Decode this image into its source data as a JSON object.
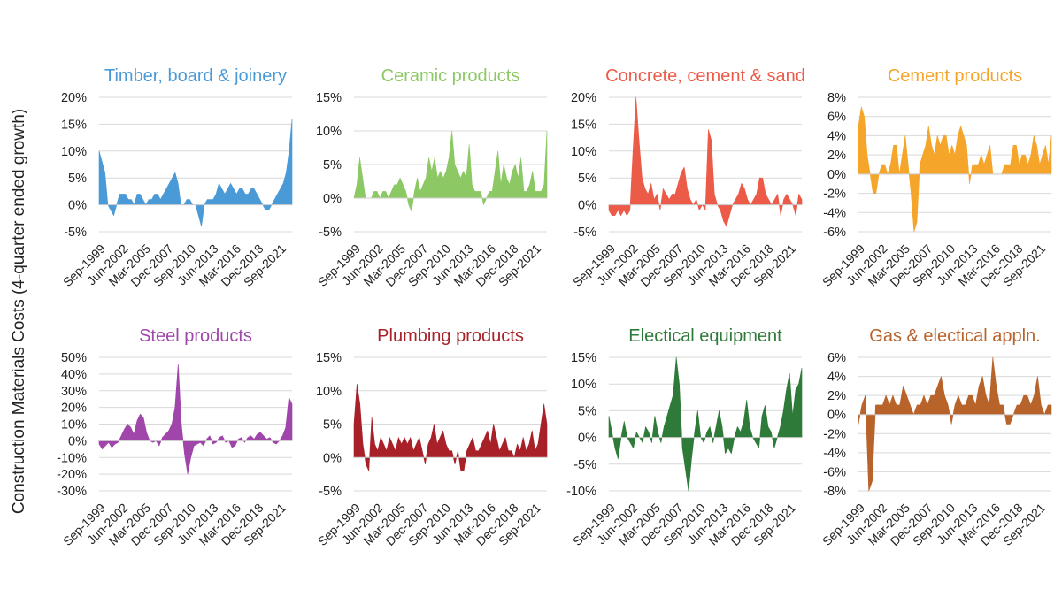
{
  "figure": {
    "ylabel": "Construction Materials Costs (4-quarter ended growth)"
  },
  "chart_data": [
    {
      "type": "area",
      "title": "Timber, board & joinery",
      "color": "#4a9ad8",
      "ylim": [
        -5,
        20
      ],
      "yticks": [
        -5,
        0,
        5,
        10,
        15,
        20
      ],
      "ytick_labels": [
        "-5%",
        "0%",
        "5%",
        "10%",
        "15%",
        "20%"
      ],
      "x_start": "Sep-1999",
      "x_end": "Dec-2021",
      "xtick_labels": [
        "Sep-1999",
        "Jun-2002",
        "Mar-2005",
        "Dec-2007",
        "Sep-2010",
        "Jun-2013",
        "Mar-2016",
        "Dec-2018",
        "Sep-2021"
      ],
      "grid": true,
      "values": [
        10,
        8,
        6,
        0,
        -1,
        -2,
        0,
        2,
        2,
        2,
        1,
        1,
        0,
        2,
        2,
        1,
        0,
        1,
        1,
        2,
        2,
        1,
        2,
        3,
        4,
        5,
        6,
        4,
        0,
        0,
        1,
        1,
        0,
        0,
        -2,
        -4,
        0,
        1,
        1,
        1,
        2,
        4,
        3,
        2,
        3,
        4,
        3,
        2,
        3,
        3,
        2,
        2,
        3,
        3,
        2,
        1,
        0,
        -1,
        -1,
        0,
        1,
        2,
        3,
        4,
        6,
        10,
        16
      ]
    },
    {
      "type": "area",
      "title": "Ceramic products",
      "color": "#8cc864",
      "ylim": [
        -5,
        15
      ],
      "yticks": [
        -5,
        0,
        5,
        10,
        15
      ],
      "ytick_labels": [
        "-5%",
        "0%",
        "5%",
        "10%",
        "15%"
      ],
      "x_start": "Sep-1999",
      "x_end": "Dec-2021",
      "xtick_labels": [
        "Sep-1999",
        "Jun-2002",
        "Mar-2005",
        "Dec-2007",
        "Sep-2010",
        "Jun-2013",
        "Mar-2016",
        "Dec-2018",
        "Sep-2021"
      ],
      "grid": true,
      "values": [
        0,
        2,
        6,
        3,
        0,
        0,
        0,
        1,
        1,
        0,
        1,
        1,
        0,
        1,
        2,
        2,
        3,
        2,
        1,
        -1,
        -2,
        1,
        3,
        1,
        2,
        3,
        6,
        4,
        6,
        3,
        4,
        3,
        4,
        6,
        10,
        5,
        4,
        3,
        4,
        3,
        8,
        2,
        1,
        1,
        1,
        -1,
        0,
        1,
        1,
        4,
        7,
        2,
        5,
        3,
        2,
        4,
        5,
        3,
        6,
        1,
        1,
        2,
        4,
        1,
        1,
        1,
        2,
        10
      ]
    },
    {
      "type": "area",
      "title": "Concrete, cement & sand",
      "color": "#ec5a48",
      "ylim": [
        -5,
        20
      ],
      "yticks": [
        -5,
        0,
        5,
        10,
        15,
        20
      ],
      "ytick_labels": [
        "-5%",
        "0%",
        "5%",
        "10%",
        "15%",
        "20%"
      ],
      "x_start": "Sep-1999",
      "x_end": "Dec-2021",
      "xtick_labels": [
        "Sep-1999",
        "Jun-2002",
        "Mar-2005",
        "Dec-2007",
        "Sep-2010",
        "Jun-2013",
        "Mar-2016",
        "Dec-2018",
        "Sep-2021"
      ],
      "grid": true,
      "values": [
        -1,
        -2,
        -2,
        -1,
        -2,
        -1,
        -2,
        -1,
        10,
        20,
        12,
        5,
        3,
        2,
        4,
        1,
        2,
        -1,
        3,
        2,
        1,
        2,
        2,
        4,
        6,
        7,
        3,
        1,
        0,
        1,
        -1,
        0,
        -1,
        14,
        12,
        2,
        0,
        -1,
        -3,
        -4,
        -2,
        0,
        1,
        2,
        4,
        3,
        1,
        0,
        1,
        2,
        5,
        5,
        2,
        1,
        0,
        1,
        2,
        -2,
        1,
        2,
        1,
        0,
        -2,
        2,
        1
      ]
    },
    {
      "type": "area",
      "title": "Cement products",
      "color": "#f5a52a",
      "ylim": [
        -6,
        8
      ],
      "yticks": [
        -6,
        -4,
        -2,
        0,
        2,
        4,
        6,
        8
      ],
      "ytick_labels": [
        "-6%",
        "-4%",
        "-2%",
        "0%",
        "2%",
        "4%",
        "6%",
        "8%"
      ],
      "x_start": "Sep-1999",
      "x_end": "Dec-2021",
      "xtick_labels": [
        "Sep-1999",
        "Jun-2002",
        "Mar-2005",
        "Dec-2007",
        "Sep-2010",
        "Jun-2013",
        "Mar-2016",
        "Dec-2018",
        "Sep-2021"
      ],
      "grid": true,
      "values": [
        5,
        7,
        6,
        2,
        0,
        -2,
        -2,
        0,
        1,
        1,
        0,
        1,
        3,
        3,
        0,
        2,
        4,
        1,
        -2,
        -6,
        -5,
        1,
        2,
        3,
        5,
        3,
        2,
        4,
        3,
        4,
        4,
        2,
        3,
        2,
        4,
        5,
        4,
        3,
        -1,
        1,
        1,
        1,
        2,
        1,
        2,
        3,
        0,
        0,
        0,
        0,
        1,
        1,
        1,
        3,
        3,
        1,
        2,
        2,
        1,
        2,
        4,
        3,
        1,
        2,
        3,
        1,
        4
      ]
    },
    {
      "type": "area",
      "title": "Steel products",
      "color": "#a046aa",
      "ylim": [
        -30,
        50
      ],
      "yticks": [
        -30,
        -20,
        -10,
        0,
        10,
        20,
        30,
        40,
        50
      ],
      "ytick_labels": [
        "-30%",
        "-20%",
        "-10%",
        "0%",
        "10%",
        "20%",
        "30%",
        "40%",
        "50%"
      ],
      "x_start": "Sep-1999",
      "x_end": "Dec-2021",
      "xtick_labels": [
        "Sep-1999",
        "Jun-2002",
        "Mar-2005",
        "Dec-2007",
        "Sep-2010",
        "Jun-2013",
        "Mar-2016",
        "Dec-2018",
        "Sep-2021"
      ],
      "grid": true,
      "values": [
        -2,
        -5,
        -3,
        -1,
        -4,
        -2,
        -1,
        3,
        7,
        10,
        8,
        4,
        12,
        16,
        14,
        5,
        0,
        -1,
        0,
        -3,
        2,
        4,
        6,
        10,
        20,
        46,
        10,
        -8,
        -20,
        -10,
        -3,
        -2,
        -1,
        -3,
        1,
        3,
        -2,
        -1,
        2,
        3,
        -1,
        0,
        -4,
        -3,
        1,
        2,
        -1,
        2,
        3,
        1,
        4,
        5,
        3,
        1,
        2,
        -1,
        -2,
        0,
        3,
        8,
        26,
        22
      ]
    },
    {
      "type": "area",
      "title": "Plumbing products",
      "color": "#a82028",
      "ylim": [
        -5,
        15
      ],
      "yticks": [
        -5,
        0,
        5,
        10,
        15
      ],
      "ytick_labels": [
        "-5%",
        "0%",
        "5%",
        "10%",
        "15%"
      ],
      "x_start": "Sep-1999",
      "x_end": "Dec-2021",
      "xtick_labels": [
        "Sep-1999",
        "Jun-2002",
        "Mar-2005",
        "Dec-2007",
        "Sep-2010",
        "Jun-2013",
        "Mar-2016",
        "Dec-2018",
        "Sep-2021"
      ],
      "grid": true,
      "values": [
        5,
        11,
        8,
        2,
        -1,
        -2,
        6,
        2,
        1,
        3,
        2,
        1,
        3,
        2,
        1,
        3,
        2,
        3,
        2,
        3,
        1,
        2,
        3,
        1,
        -1,
        2,
        3,
        5,
        2,
        3,
        4,
        2,
        1,
        1,
        -1,
        1,
        -2,
        -2,
        1,
        2,
        3,
        1,
        1,
        2,
        3,
        4,
        2,
        5,
        3,
        1,
        2,
        3,
        1,
        1,
        0,
        2,
        1,
        3,
        1,
        2,
        4,
        1,
        2,
        5,
        8,
        5
      ]
    },
    {
      "type": "area",
      "title": "Electical equipment",
      "color": "#2e7a38",
      "ylim": [
        -10,
        15
      ],
      "yticks": [
        -10,
        -5,
        0,
        5,
        10,
        15
      ],
      "ytick_labels": [
        "-10%",
        "-5%",
        "0%",
        "5%",
        "10%",
        "15%"
      ],
      "x_start": "Sep-1999",
      "x_end": "Dec-2021",
      "xtick_labels": [
        "Sep-1999",
        "Jun-2002",
        "Mar-2005",
        "Dec-2007",
        "Sep-2010",
        "Jun-2013",
        "Mar-2016",
        "Dec-2018",
        "Sep-2021"
      ],
      "grid": true,
      "values": [
        4,
        1,
        -2,
        -4,
        0,
        3,
        0,
        -1,
        -2,
        1,
        0,
        -1,
        2,
        1,
        -1,
        4,
        1,
        -1,
        2,
        4,
        6,
        8,
        15,
        10,
        -2,
        -6,
        -10,
        -4,
        1,
        5,
        0,
        -1,
        1,
        2,
        -1,
        2,
        5,
        2,
        -3,
        -2,
        -3,
        0,
        2,
        1,
        3,
        7,
        2,
        0,
        -1,
        -2,
        4,
        6,
        2,
        1,
        -2,
        0,
        2,
        5,
        9,
        12,
        4,
        9,
        10,
        13
      ]
    },
    {
      "type": "area",
      "title": "Gas & electical appln.",
      "color": "#b8632a",
      "ylim": [
        -8,
        6
      ],
      "yticks": [
        -8,
        -6,
        -4,
        -2,
        0,
        2,
        4,
        6
      ],
      "ytick_labels": [
        "-8%",
        "-6%",
        "-4%",
        "-2%",
        "0%",
        "2%",
        "4%",
        "6%"
      ],
      "x_start": "Sep-1999",
      "x_end": "Dec-2021",
      "xtick_labels": [
        "Sep-1999",
        "Jun-2002",
        "Mar-2005",
        "Dec-2007",
        "Sep-2010",
        "Jun-2013",
        "Mar-2016",
        "Dec-2018",
        "Sep-2021"
      ],
      "grid": true,
      "values": [
        -1,
        1,
        2,
        -8,
        -7,
        1,
        1,
        1,
        2,
        1,
        2,
        1,
        1,
        3,
        2,
        1,
        0,
        1,
        1,
        2,
        1,
        2,
        2,
        3,
        4,
        2,
        1,
        -1,
        1,
        2,
        1,
        1,
        2,
        2,
        1,
        3,
        4,
        2,
        1,
        6,
        3,
        1,
        1,
        -1,
        -1,
        0,
        1,
        1,
        2,
        2,
        1,
        2,
        4,
        1,
        0,
        1,
        1
      ]
    }
  ]
}
